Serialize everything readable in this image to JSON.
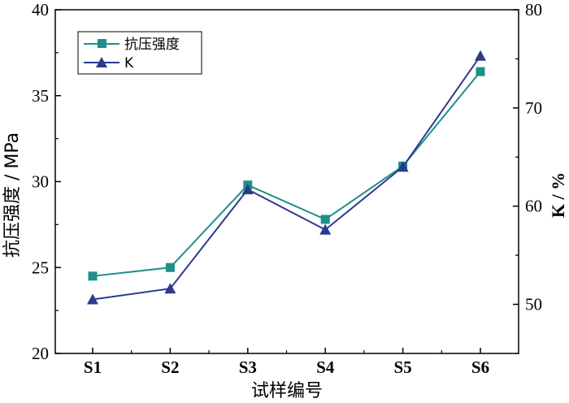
{
  "chart_data": {
    "type": "line",
    "categories": [
      "S1",
      "S2",
      "S3",
      "S4",
      "S5",
      "S6"
    ],
    "xlabel": "试样编号",
    "ylabel": "抗压强度 / MPa",
    "y2label": "K / %",
    "ylim": [
      20,
      40
    ],
    "y2lim": [
      45,
      80
    ],
    "yticks": [
      "20",
      "25",
      "30",
      "35",
      "40"
    ],
    "y2ticks": [
      "50",
      "60",
      "70",
      "80"
    ],
    "series": [
      {
        "name": "抗压强度",
        "axis": "left",
        "color": "#1e8f8a",
        "marker": "square",
        "values": [
          24.5,
          25.0,
          29.8,
          27.8,
          30.9,
          36.4
        ]
      },
      {
        "name": "K",
        "axis": "right",
        "color": "#2b3a8f",
        "marker": "triangle",
        "values": [
          50.5,
          51.6,
          61.7,
          57.6,
          64.0,
          75.3
        ]
      }
    ],
    "legend_position": "top-left",
    "grid": false
  }
}
